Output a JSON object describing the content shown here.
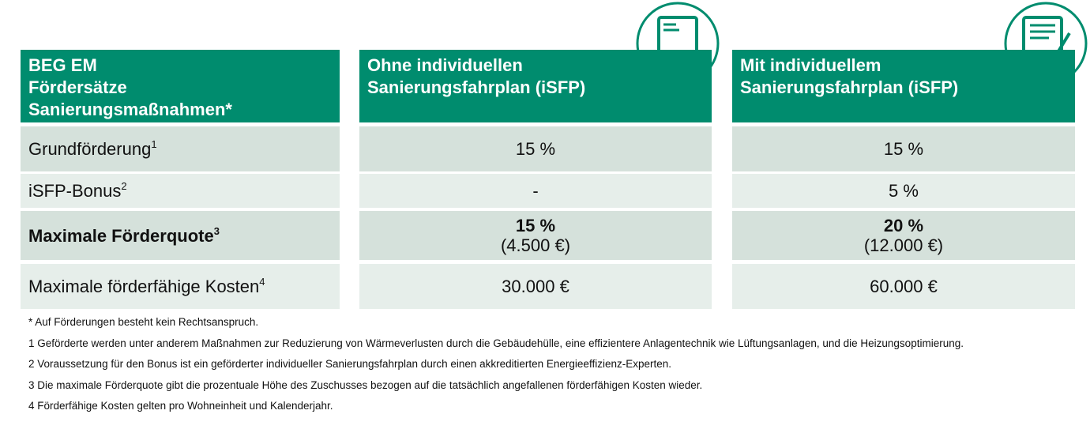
{
  "header": [
    [
      "BEG EM",
      "Fördersätze",
      "Sanierungsmaßnahmen*"
    ],
    [
      "Ohne individuellen",
      "Sanierungsfahrplan (iSFP)"
    ],
    [
      "Mit individuellem",
      "Sanierungsfahrplan (iSFP)"
    ]
  ],
  "rows": [
    {
      "label": "Grundförderung",
      "sup": "1",
      "cells": [
        [
          "15 %"
        ],
        [
          "15 %"
        ]
      ]
    },
    {
      "label": "iSFP-Bonus",
      "sup": "2",
      "cells": [
        [
          "-"
        ],
        [
          "5 %"
        ]
      ]
    },
    {
      "label": "Maximale Förderquote",
      "sup": "3",
      "cells": [
        [
          "15 %",
          "(4.500 €)"
        ],
        [
          "20 %",
          "(12.000 €)"
        ]
      ]
    },
    {
      "label": "Maximale förderfähige Kosten",
      "sup": "4",
      "cells": [
        [
          "30.000 €"
        ],
        [
          "60.000 €"
        ]
      ]
    }
  ],
  "footnotes": [
    "* Auf Förderungen besteht kein Rechtsanspruch.",
    "1 Geförderte werden unter anderem Maßnahmen zur Reduzierung von Wärmeverlusten durch die Gebäudehülle, eine effizientere Anlagentechnik wie Lüftungsanlagen, und die Heizungsoptimierung.",
    "2 Voraussetzung für den Bonus ist ein geförderter individueller Sanierungsfahrplan durch einen akkreditierten Energieeffizienz-Experten.",
    "3 Die maximale Förderquote gibt die prozentuale Höhe des Zuschusses bezogen auf die tatsächlich angefallenen förderfähigen Kosten wieder.",
    "4 Förderfähige Kosten gelten pro Wohneinheit und Kalenderjahr."
  ]
}
